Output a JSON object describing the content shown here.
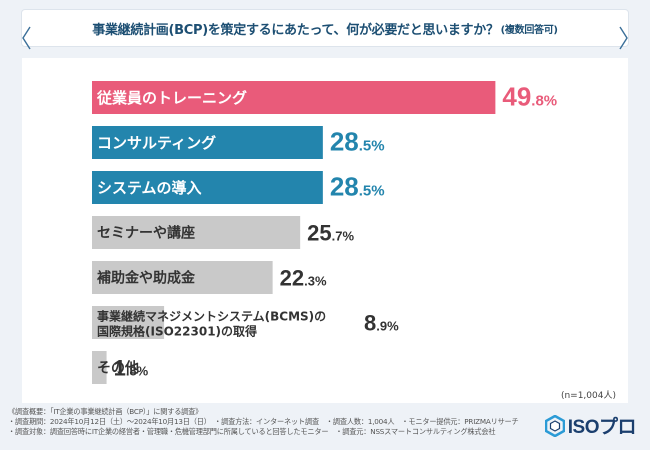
{
  "header": {
    "title": "事業継続計画(BCP)を策定するにあたって、何が必要だと思いますか？",
    "note": "(複数回答可)"
  },
  "chart_data": {
    "type": "bar",
    "orientation": "horizontal",
    "title": "事業継続計画(BCP)を策定するにあたって、何が必要だと思いますか？(複数回答可)",
    "categories": [
      [
        "従業員のトレーニング"
      ],
      [
        "コンサルティング"
      ],
      [
        "システムの導入"
      ],
      [
        "セミナーや講座"
      ],
      [
        "補助金や助成金"
      ],
      [
        "事業継続マネジメントシステム(BCMS)の",
        "国際規格(ISO22301)の取得"
      ],
      [
        "その他"
      ]
    ],
    "values": [
      49.8,
      28.5,
      28.5,
      25.7,
      22.3,
      8.9,
      1.8
    ],
    "value_labels": [
      [
        "49",
        ".8%"
      ],
      [
        "28",
        ".5%"
      ],
      [
        "28",
        ".5%"
      ],
      [
        "25",
        ".7%"
      ],
      [
        "22",
        ".3%"
      ],
      [
        "8",
        ".9%"
      ],
      [
        "1",
        ".8%"
      ]
    ],
    "xlim": [
      0,
      50
    ],
    "colors": [
      "#e95b7a",
      "#2385ad",
      "#2385ad",
      "#c9c9c9",
      "#c9c9c9",
      "#c9c9c9",
      "#c9c9c9"
    ],
    "n_note": "(n=1,004人)"
  },
  "footer": {
    "lines": [
      "《調査概要：「IT企業の事業継続計画（BCP）」に関する調査》",
      "・調査期間：2024年10月12日（土）～2024年10月13日（日）　・調査方法：インターネット調査　・調査人数：1,004人　・モニター提供元：PRIZMAリサーチ",
      "・調査対象：調査回答時にIT企業の経営者・管理職・危機管理部門に所属していると回答したモニター　・調査元：NSSスマートコンサルティング株式会社"
    ]
  },
  "logo": {
    "text": "ISOプロ"
  }
}
